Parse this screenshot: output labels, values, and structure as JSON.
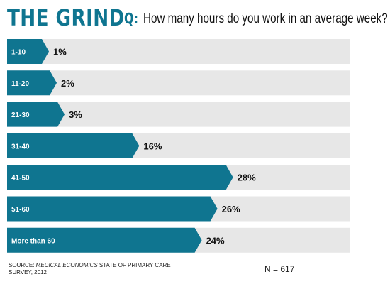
{
  "header": {
    "brand": "THE GRIND",
    "q_prefix": "Q:",
    "question": "How many hours do you work in an average week?"
  },
  "footer": {
    "source_prefix": "SOURCE: ",
    "source_italic": "MEDICAL ECONOMICS",
    "source_rest": " STATE OF PRIMARY CARE SURVEY, 2012",
    "n_label": "N = 617"
  },
  "colors": {
    "bar": "#0f7590",
    "track": "#e7e7e7",
    "brand": "#0f7590"
  },
  "chart_data": {
    "type": "bar",
    "orientation": "horizontal",
    "categories": [
      "1-10",
      "11-20",
      "21-30",
      "31-40",
      "41-50",
      "51-60",
      "More than 60"
    ],
    "values": [
      1,
      2,
      3,
      16,
      28,
      26,
      24
    ],
    "value_labels": [
      "1%",
      "2%",
      "3%",
      "16%",
      "28%",
      "26%",
      "24%"
    ],
    "unit": "%",
    "xlim": [
      0,
      42
    ],
    "grid": false,
    "legend": "none"
  }
}
